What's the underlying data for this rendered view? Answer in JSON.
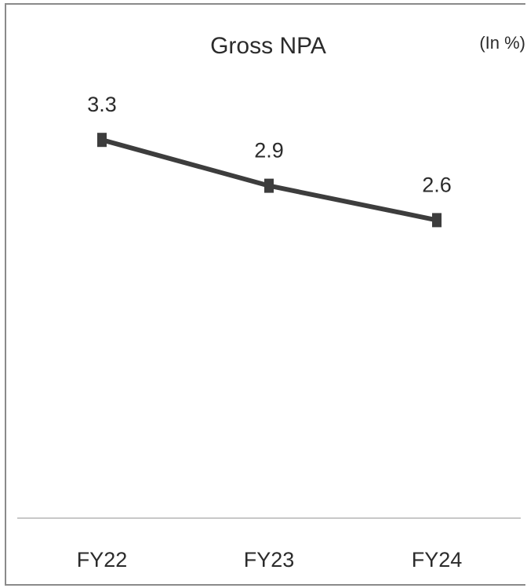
{
  "chart_data": {
    "type": "line",
    "title": "Gross NPA",
    "unit_label": "(In %)",
    "categories": [
      "FY22",
      "FY23",
      "FY24"
    ],
    "series": [
      {
        "values": [
          3.3,
          2.9,
          2.6
        ]
      }
    ],
    "data_labels": [
      "3.3",
      "2.9",
      "2.6"
    ],
    "ylim": [
      0,
      4.5
    ],
    "grid": false,
    "legend": "none",
    "colors": {
      "line": "#3d3d3d",
      "marker": "#3d3d3d",
      "baseline": "#c8c8c8",
      "text": "#2b2b2b"
    }
  }
}
